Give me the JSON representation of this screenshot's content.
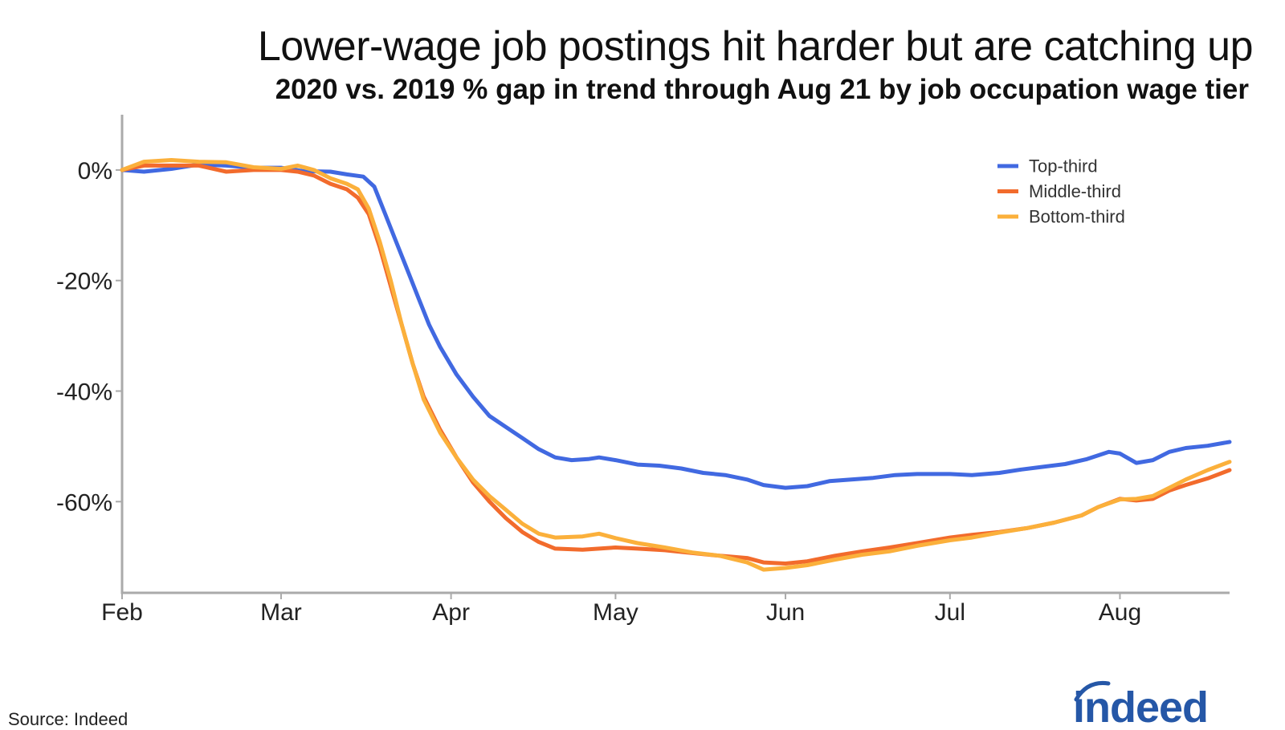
{
  "title": "Lower-wage job postings hit harder but are catching up",
  "subtitle": "2020 vs. 2019 % gap in trend through Aug 21 by job occupation wage tier",
  "source": "Source: Indeed",
  "logo_text": "indeed",
  "colors": {
    "top": "#4169e1",
    "middle": "#f26b2c",
    "bottom": "#fbb03b",
    "axis": "#aaaaaa",
    "logo": "#2557a7"
  },
  "chart_data": {
    "type": "line",
    "xlabel": "",
    "ylabel": "",
    "x_ticks": [
      {
        "label": "Feb",
        "date": "2020-02-01"
      },
      {
        "label": "Mar",
        "date": "2020-03-01"
      },
      {
        "label": "Apr",
        "date": "2020-04-01"
      },
      {
        "label": "May",
        "date": "2020-05-01"
      },
      {
        "label": "Jun",
        "date": "2020-06-01"
      },
      {
        "label": "Jul",
        "date": "2020-07-01"
      },
      {
        "label": "Aug",
        "date": "2020-08-01"
      }
    ],
    "y_ticks": [
      {
        "label": "0%",
        "value": 0
      },
      {
        "label": "-20%",
        "value": -20
      },
      {
        "label": "-40%",
        "value": -40
      },
      {
        "label": "-60%",
        "value": -60
      }
    ],
    "xlim": [
      "2020-02-01",
      "2020-08-21"
    ],
    "ylim": [
      -76.5,
      10
    ],
    "legend_position": "top-right",
    "series": [
      {
        "name": "Top-third",
        "color": "#4169e1",
        "points": [
          [
            "2020-02-01",
            0
          ],
          [
            "2020-02-05",
            -0.3
          ],
          [
            "2020-02-10",
            0.2
          ],
          [
            "2020-02-15",
            1
          ],
          [
            "2020-02-20",
            0.8
          ],
          [
            "2020-02-25",
            0.4
          ],
          [
            "2020-03-01",
            0.4
          ],
          [
            "2020-03-05",
            -0.2
          ],
          [
            "2020-03-10",
            -0.3
          ],
          [
            "2020-03-13",
            -0.8
          ],
          [
            "2020-03-16",
            -1.2
          ],
          [
            "2020-03-18",
            -3
          ],
          [
            "2020-03-20",
            -8
          ],
          [
            "2020-03-22",
            -13
          ],
          [
            "2020-03-24",
            -18
          ],
          [
            "2020-03-26",
            -23
          ],
          [
            "2020-03-28",
            -28
          ],
          [
            "2020-03-30",
            -32
          ],
          [
            "2020-04-02",
            -37
          ],
          [
            "2020-04-05",
            -41
          ],
          [
            "2020-04-08",
            -44.5
          ],
          [
            "2020-04-11",
            -46.5
          ],
          [
            "2020-04-14",
            -48.5
          ],
          [
            "2020-04-17",
            -50.5
          ],
          [
            "2020-04-20",
            -52
          ],
          [
            "2020-04-23",
            -52.5
          ],
          [
            "2020-04-26",
            -52.3
          ],
          [
            "2020-04-28",
            -52
          ],
          [
            "2020-05-01",
            -52.5
          ],
          [
            "2020-05-05",
            -53.3
          ],
          [
            "2020-05-09",
            -53.5
          ],
          [
            "2020-05-13",
            -54
          ],
          [
            "2020-05-17",
            -54.8
          ],
          [
            "2020-05-21",
            -55.2
          ],
          [
            "2020-05-25",
            -56
          ],
          [
            "2020-05-28",
            -57
          ],
          [
            "2020-06-01",
            -57.5
          ],
          [
            "2020-06-05",
            -57.2
          ],
          [
            "2020-06-09",
            -56.3
          ],
          [
            "2020-06-13",
            -56
          ],
          [
            "2020-06-17",
            -55.7
          ],
          [
            "2020-06-21",
            -55.2
          ],
          [
            "2020-06-25",
            -55
          ],
          [
            "2020-07-01",
            -55
          ],
          [
            "2020-07-05",
            -55.2
          ],
          [
            "2020-07-10",
            -54.8
          ],
          [
            "2020-07-14",
            -54.2
          ],
          [
            "2020-07-18",
            -53.7
          ],
          [
            "2020-07-22",
            -53.2
          ],
          [
            "2020-07-26",
            -52.3
          ],
          [
            "2020-07-30",
            -51
          ],
          [
            "2020-08-01",
            -51.3
          ],
          [
            "2020-08-04",
            -53
          ],
          [
            "2020-08-07",
            -52.5
          ],
          [
            "2020-08-10",
            -51
          ],
          [
            "2020-08-13",
            -50.3
          ],
          [
            "2020-08-17",
            -49.9
          ],
          [
            "2020-08-21",
            -49.2
          ]
        ]
      },
      {
        "name": "Middle-third",
        "color": "#f26b2c",
        "points": [
          [
            "2020-02-01",
            0
          ],
          [
            "2020-02-05",
            0.8
          ],
          [
            "2020-02-10",
            0.8
          ],
          [
            "2020-02-15",
            0.8
          ],
          [
            "2020-02-20",
            -0.3
          ],
          [
            "2020-02-25",
            0
          ],
          [
            "2020-03-01",
            0
          ],
          [
            "2020-03-04",
            -0.3
          ],
          [
            "2020-03-07",
            -1
          ],
          [
            "2020-03-10",
            -2.5
          ],
          [
            "2020-03-13",
            -3.5
          ],
          [
            "2020-03-15",
            -5
          ],
          [
            "2020-03-17",
            -8
          ],
          [
            "2020-03-19",
            -14
          ],
          [
            "2020-03-21",
            -21
          ],
          [
            "2020-03-23",
            -28
          ],
          [
            "2020-03-25",
            -35
          ],
          [
            "2020-03-27",
            -41
          ],
          [
            "2020-03-30",
            -47
          ],
          [
            "2020-04-02",
            -52
          ],
          [
            "2020-04-05",
            -56.5
          ],
          [
            "2020-04-08",
            -60
          ],
          [
            "2020-04-11",
            -63
          ],
          [
            "2020-04-14",
            -65.5
          ],
          [
            "2020-04-17",
            -67.3
          ],
          [
            "2020-04-20",
            -68.5
          ],
          [
            "2020-04-25",
            -68.7
          ],
          [
            "2020-05-01",
            -68.3
          ],
          [
            "2020-05-05",
            -68.5
          ],
          [
            "2020-05-10",
            -68.8
          ],
          [
            "2020-05-15",
            -69.3
          ],
          [
            "2020-05-20",
            -69.8
          ],
          [
            "2020-05-25",
            -70.2
          ],
          [
            "2020-05-28",
            -71
          ],
          [
            "2020-06-01",
            -71.2
          ],
          [
            "2020-06-05",
            -70.8
          ],
          [
            "2020-06-10",
            -69.8
          ],
          [
            "2020-06-15",
            -69
          ],
          [
            "2020-06-20",
            -68.3
          ],
          [
            "2020-06-25",
            -67.5
          ],
          [
            "2020-07-01",
            -66.5
          ],
          [
            "2020-07-05",
            -66
          ],
          [
            "2020-07-10",
            -65.5
          ],
          [
            "2020-07-15",
            -64.8
          ],
          [
            "2020-07-20",
            -63.8
          ],
          [
            "2020-07-25",
            -62.5
          ],
          [
            "2020-07-28",
            -61
          ],
          [
            "2020-08-01",
            -59.5
          ],
          [
            "2020-08-04",
            -59.8
          ],
          [
            "2020-08-07",
            -59.5
          ],
          [
            "2020-08-10",
            -58
          ],
          [
            "2020-08-13",
            -57
          ],
          [
            "2020-08-17",
            -55.8
          ],
          [
            "2020-08-21",
            -54.3
          ]
        ]
      },
      {
        "name": "Bottom-third",
        "color": "#fbb03b",
        "points": [
          [
            "2020-02-01",
            0
          ],
          [
            "2020-02-05",
            1.5
          ],
          [
            "2020-02-10",
            1.8
          ],
          [
            "2020-02-15",
            1.5
          ],
          [
            "2020-02-20",
            1.4
          ],
          [
            "2020-02-25",
            0.5
          ],
          [
            "2020-03-01",
            0.2
          ],
          [
            "2020-03-04",
            0.8
          ],
          [
            "2020-03-07",
            0
          ],
          [
            "2020-03-10",
            -1.5
          ],
          [
            "2020-03-13",
            -2.5
          ],
          [
            "2020-03-15",
            -3.5
          ],
          [
            "2020-03-17",
            -7
          ],
          [
            "2020-03-19",
            -13
          ],
          [
            "2020-03-21",
            -20
          ],
          [
            "2020-03-23",
            -28
          ],
          [
            "2020-03-25",
            -35
          ],
          [
            "2020-03-27",
            -41.5
          ],
          [
            "2020-03-30",
            -47.5
          ],
          [
            "2020-04-02",
            -52
          ],
          [
            "2020-04-05",
            -56
          ],
          [
            "2020-04-08",
            -59
          ],
          [
            "2020-04-11",
            -61.5
          ],
          [
            "2020-04-14",
            -64
          ],
          [
            "2020-04-17",
            -65.8
          ],
          [
            "2020-04-20",
            -66.5
          ],
          [
            "2020-04-25",
            -66.3
          ],
          [
            "2020-04-28",
            -65.8
          ],
          [
            "2020-05-01",
            -66.6
          ],
          [
            "2020-05-05",
            -67.5
          ],
          [
            "2020-05-10",
            -68.3
          ],
          [
            "2020-05-15",
            -69.2
          ],
          [
            "2020-05-20",
            -69.8
          ],
          [
            "2020-05-25",
            -71
          ],
          [
            "2020-05-28",
            -72.3
          ],
          [
            "2020-06-01",
            -72
          ],
          [
            "2020-06-05",
            -71.5
          ],
          [
            "2020-06-10",
            -70.5
          ],
          [
            "2020-06-15",
            -69.6
          ],
          [
            "2020-06-20",
            -69
          ],
          [
            "2020-06-25",
            -68
          ],
          [
            "2020-07-01",
            -67
          ],
          [
            "2020-07-05",
            -66.5
          ],
          [
            "2020-07-10",
            -65.6
          ],
          [
            "2020-07-15",
            -64.8
          ],
          [
            "2020-07-20",
            -63.8
          ],
          [
            "2020-07-25",
            -62.5
          ],
          [
            "2020-07-28",
            -61
          ],
          [
            "2020-08-01",
            -59.6
          ],
          [
            "2020-08-04",
            -59.5
          ],
          [
            "2020-08-07",
            -59
          ],
          [
            "2020-08-10",
            -57.5
          ],
          [
            "2020-08-13",
            -56
          ],
          [
            "2020-08-17",
            -54.3
          ],
          [
            "2020-08-21",
            -52.8
          ]
        ]
      }
    ]
  }
}
